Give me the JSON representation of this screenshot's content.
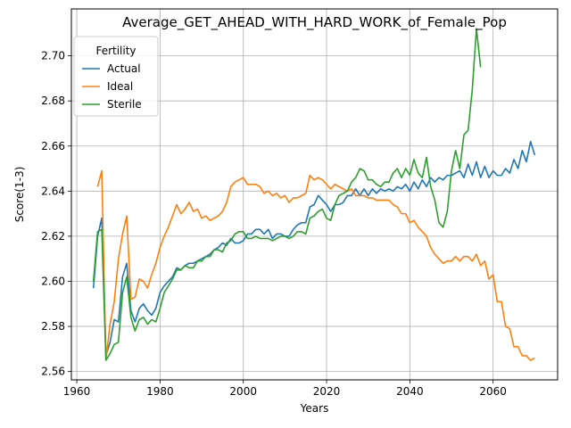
{
  "chart_data": {
    "type": "line",
    "title": "Average_GET_AHEAD_WITH_HARD_WORK_of_Female_Pop",
    "xlabel": "Years",
    "ylabel": "Score(1-3)",
    "xlim": [
      1958.7,
      2075.5
    ],
    "ylim": [
      2.5563,
      2.7208
    ],
    "x_ticks": [
      1960,
      1980,
      2000,
      2020,
      2040,
      2060
    ],
    "y_ticks": [
      2.56,
      2.58,
      2.6,
      2.62,
      2.64,
      2.66,
      2.68,
      2.7
    ],
    "grid": true,
    "legend": {
      "title": "Fertility",
      "placement": "upper-left"
    },
    "series": [
      {
        "name": "Actual",
        "color": "#1f77b4",
        "points": [
          [
            1964,
            2.597
          ],
          [
            1965,
            2.62
          ],
          [
            1966,
            2.628
          ],
          [
            1967,
            2.567
          ],
          [
            1968,
            2.573
          ],
          [
            1969,
            2.583
          ],
          [
            1970,
            2.582
          ],
          [
            1971,
            2.602
          ],
          [
            1972,
            2.608
          ],
          [
            1973,
            2.587
          ],
          [
            1974,
            2.582
          ],
          [
            1975,
            2.588
          ],
          [
            1976,
            2.59
          ],
          [
            1977,
            2.587
          ],
          [
            1978,
            2.585
          ],
          [
            1979,
            2.588
          ],
          [
            1980,
            2.595
          ],
          [
            1981,
            2.598
          ],
          [
            1982,
            2.6
          ],
          [
            1983,
            2.602
          ],
          [
            1984,
            2.606
          ],
          [
            1985,
            2.605
          ],
          [
            1986,
            2.607
          ],
          [
            1987,
            2.608
          ],
          [
            1988,
            2.608
          ],
          [
            1989,
            2.609
          ],
          [
            1990,
            2.61
          ],
          [
            1991,
            2.611
          ],
          [
            1992,
            2.612
          ],
          [
            1993,
            2.614
          ],
          [
            1994,
            2.615
          ],
          [
            1995,
            2.617
          ],
          [
            1996,
            2.616
          ],
          [
            1997,
            2.619
          ],
          [
            1998,
            2.617
          ],
          [
            1999,
            2.617
          ],
          [
            2000,
            2.618
          ],
          [
            2001,
            2.621
          ],
          [
            2002,
            2.621
          ],
          [
            2003,
            2.623
          ],
          [
            2004,
            2.623
          ],
          [
            2005,
            2.621
          ],
          [
            2006,
            2.623
          ],
          [
            2007,
            2.619
          ],
          [
            2008,
            2.621
          ],
          [
            2009,
            2.621
          ],
          [
            2010,
            2.62
          ],
          [
            2011,
            2.62
          ],
          [
            2012,
            2.623
          ],
          [
            2013,
            2.625
          ],
          [
            2014,
            2.626
          ],
          [
            2015,
            2.626
          ],
          [
            2016,
            2.633
          ],
          [
            2017,
            2.634
          ],
          [
            2018,
            2.638
          ],
          [
            2019,
            2.636
          ],
          [
            2020,
            2.634
          ],
          [
            2021,
            2.631
          ],
          [
            2022,
            2.634
          ],
          [
            2023,
            2.634
          ],
          [
            2024,
            2.635
          ],
          [
            2025,
            2.638
          ],
          [
            2026,
            2.638
          ],
          [
            2027,
            2.641
          ],
          [
            2028,
            2.638
          ],
          [
            2029,
            2.641
          ],
          [
            2030,
            2.638
          ],
          [
            2031,
            2.641
          ],
          [
            2032,
            2.639
          ],
          [
            2033,
            2.641
          ],
          [
            2034,
            2.64
          ],
          [
            2035,
            2.641
          ],
          [
            2036,
            2.64
          ],
          [
            2037,
            2.642
          ],
          [
            2038,
            2.641
          ],
          [
            2039,
            2.643
          ],
          [
            2040,
            2.64
          ],
          [
            2041,
            2.644
          ],
          [
            2042,
            2.641
          ],
          [
            2043,
            2.645
          ],
          [
            2044,
            2.642
          ],
          [
            2045,
            2.646
          ],
          [
            2046,
            2.644
          ],
          [
            2047,
            2.646
          ],
          [
            2048,
            2.645
          ],
          [
            2049,
            2.647
          ],
          [
            2050,
            2.647
          ],
          [
            2051,
            2.648
          ],
          [
            2052,
            2.649
          ],
          [
            2053,
            2.646
          ],
          [
            2054,
            2.652
          ],
          [
            2055,
            2.647
          ],
          [
            2056,
            2.653
          ],
          [
            2057,
            2.646
          ],
          [
            2058,
            2.651
          ],
          [
            2059,
            2.646
          ],
          [
            2060,
            2.649
          ],
          [
            2061,
            2.647
          ],
          [
            2062,
            2.647
          ],
          [
            2063,
            2.65
          ],
          [
            2064,
            2.648
          ],
          [
            2065,
            2.654
          ],
          [
            2066,
            2.65
          ],
          [
            2067,
            2.658
          ],
          [
            2068,
            2.653
          ],
          [
            2069,
            2.662
          ],
          [
            2070,
            2.656
          ]
        ]
      },
      {
        "name": "Ideal",
        "color": "#ff7f0e",
        "points": [
          [
            1965,
            2.642
          ],
          [
            1966,
            2.649
          ],
          [
            1967,
            2.565
          ],
          [
            1968,
            2.581
          ],
          [
            1969,
            2.591
          ],
          [
            1970,
            2.61
          ],
          [
            1971,
            2.621
          ],
          [
            1972,
            2.629
          ],
          [
            1973,
            2.592
          ],
          [
            1974,
            2.593
          ],
          [
            1975,
            2.601
          ],
          [
            1976,
            2.6
          ],
          [
            1977,
            2.597
          ],
          [
            1978,
            2.603
          ],
          [
            1979,
            2.608
          ],
          [
            1980,
            2.615
          ],
          [
            1981,
            2.62
          ],
          [
            1982,
            2.624
          ],
          [
            1983,
            2.629
          ],
          [
            1984,
            2.634
          ],
          [
            1985,
            2.63
          ],
          [
            1986,
            2.632
          ],
          [
            1987,
            2.635
          ],
          [
            1988,
            2.631
          ],
          [
            1989,
            2.632
          ],
          [
            1990,
            2.628
          ],
          [
            1991,
            2.629
          ],
          [
            1992,
            2.627
          ],
          [
            1993,
            2.628
          ],
          [
            1994,
            2.629
          ],
          [
            1995,
            2.631
          ],
          [
            1996,
            2.635
          ],
          [
            1997,
            2.642
          ],
          [
            1998,
            2.644
          ],
          [
            1999,
            2.645
          ],
          [
            2000,
            2.646
          ],
          [
            2001,
            2.643
          ],
          [
            2002,
            2.643
          ],
          [
            2003,
            2.643
          ],
          [
            2004,
            2.642
          ],
          [
            2005,
            2.639
          ],
          [
            2006,
            2.64
          ],
          [
            2007,
            2.638
          ],
          [
            2008,
            2.639
          ],
          [
            2009,
            2.637
          ],
          [
            2010,
            2.638
          ],
          [
            2011,
            2.635
          ],
          [
            2012,
            2.637
          ],
          [
            2013,
            2.637
          ],
          [
            2014,
            2.638
          ],
          [
            2015,
            2.639
          ],
          [
            2016,
            2.647
          ],
          [
            2017,
            2.645
          ],
          [
            2018,
            2.646
          ],
          [
            2019,
            2.645
          ],
          [
            2020,
            2.643
          ],
          [
            2021,
            2.641
          ],
          [
            2022,
            2.643
          ],
          [
            2023,
            2.642
          ],
          [
            2024,
            2.641
          ],
          [
            2025,
            2.64
          ],
          [
            2026,
            2.641
          ],
          [
            2027,
            2.638
          ],
          [
            2028,
            2.638
          ],
          [
            2029,
            2.638
          ],
          [
            2030,
            2.637
          ],
          [
            2031,
            2.637
          ],
          [
            2032,
            2.636
          ],
          [
            2033,
            2.636
          ],
          [
            2034,
            2.636
          ],
          [
            2035,
            2.636
          ],
          [
            2036,
            2.634
          ],
          [
            2037,
            2.633
          ],
          [
            2038,
            2.63
          ],
          [
            2039,
            2.63
          ],
          [
            2040,
            2.626
          ],
          [
            2041,
            2.627
          ],
          [
            2042,
            2.624
          ],
          [
            2043,
            2.622
          ],
          [
            2044,
            2.62
          ],
          [
            2045,
            2.615
          ],
          [
            2046,
            2.612
          ],
          [
            2047,
            2.61
          ],
          [
            2048,
            2.608
          ],
          [
            2049,
            2.609
          ],
          [
            2050,
            2.609
          ],
          [
            2051,
            2.611
          ],
          [
            2052,
            2.609
          ],
          [
            2053,
            2.611
          ],
          [
            2054,
            2.611
          ],
          [
            2055,
            2.609
          ],
          [
            2056,
            2.612
          ],
          [
            2057,
            2.607
          ],
          [
            2058,
            2.609
          ],
          [
            2059,
            2.601
          ],
          [
            2060,
            2.603
          ],
          [
            2061,
            2.591
          ],
          [
            2062,
            2.591
          ],
          [
            2063,
            2.58
          ],
          [
            2064,
            2.579
          ],
          [
            2065,
            2.571
          ],
          [
            2066,
            2.571
          ],
          [
            2067,
            2.567
          ],
          [
            2068,
            2.567
          ],
          [
            2069,
            2.565
          ],
          [
            2070,
            2.566
          ]
        ]
      },
      {
        "name": "Sterile",
        "color": "#2ca02c",
        "points": [
          [
            1964,
            2.6
          ],
          [
            1965,
            2.622
          ],
          [
            1966,
            2.623
          ],
          [
            1967,
            2.565
          ],
          [
            1968,
            2.568
          ],
          [
            1969,
            2.572
          ],
          [
            1970,
            2.573
          ],
          [
            1971,
            2.595
          ],
          [
            1972,
            2.602
          ],
          [
            1973,
            2.584
          ],
          [
            1974,
            2.578
          ],
          [
            1975,
            2.583
          ],
          [
            1976,
            2.584
          ],
          [
            1977,
            2.581
          ],
          [
            1978,
            2.583
          ],
          [
            1979,
            2.582
          ],
          [
            1980,
            2.588
          ],
          [
            1981,
            2.595
          ],
          [
            1982,
            2.598
          ],
          [
            1983,
            2.601
          ],
          [
            1984,
            2.605
          ],
          [
            1985,
            2.605
          ],
          [
            1986,
            2.607
          ],
          [
            1987,
            2.606
          ],
          [
            1988,
            2.606
          ],
          [
            1989,
            2.609
          ],
          [
            1990,
            2.609
          ],
          [
            1991,
            2.611
          ],
          [
            1992,
            2.611
          ],
          [
            1993,
            2.614
          ],
          [
            1994,
            2.614
          ],
          [
            1995,
            2.613
          ],
          [
            1996,
            2.617
          ],
          [
            1997,
            2.618
          ],
          [
            1998,
            2.621
          ],
          [
            1999,
            2.622
          ],
          [
            2000,
            2.622
          ],
          [
            2001,
            2.619
          ],
          [
            2002,
            2.619
          ],
          [
            2003,
            2.62
          ],
          [
            2004,
            2.619
          ],
          [
            2005,
            2.619
          ],
          [
            2006,
            2.619
          ],
          [
            2007,
            2.618
          ],
          [
            2008,
            2.619
          ],
          [
            2009,
            2.62
          ],
          [
            2010,
            2.62
          ],
          [
            2011,
            2.619
          ],
          [
            2012,
            2.62
          ],
          [
            2013,
            2.622
          ],
          [
            2014,
            2.622
          ],
          [
            2015,
            2.621
          ],
          [
            2016,
            2.628
          ],
          [
            2017,
            2.629
          ],
          [
            2018,
            2.631
          ],
          [
            2019,
            2.632
          ],
          [
            2020,
            2.628
          ],
          [
            2021,
            2.627
          ],
          [
            2022,
            2.634
          ],
          [
            2023,
            2.638
          ],
          [
            2024,
            2.639
          ],
          [
            2025,
            2.64
          ],
          [
            2026,
            2.644
          ],
          [
            2027,
            2.646
          ],
          [
            2028,
            2.65
          ],
          [
            2029,
            2.649
          ],
          [
            2030,
            2.645
          ],
          [
            2031,
            2.645
          ],
          [
            2032,
            2.643
          ],
          [
            2033,
            2.642
          ],
          [
            2034,
            2.644
          ],
          [
            2035,
            2.644
          ],
          [
            2036,
            2.648
          ],
          [
            2037,
            2.65
          ],
          [
            2038,
            2.646
          ],
          [
            2039,
            2.65
          ],
          [
            2040,
            2.647
          ],
          [
            2041,
            2.654
          ],
          [
            2042,
            2.648
          ],
          [
            2043,
            2.646
          ],
          [
            2044,
            2.655
          ],
          [
            2045,
            2.642
          ],
          [
            2046,
            2.636
          ],
          [
            2047,
            2.626
          ],
          [
            2048,
            2.624
          ],
          [
            2049,
            2.631
          ],
          [
            2050,
            2.649
          ],
          [
            2051,
            2.658
          ],
          [
            2052,
            2.65
          ],
          [
            2053,
            2.665
          ],
          [
            2054,
            2.667
          ],
          [
            2055,
            2.685
          ],
          [
            2056,
            2.712
          ],
          [
            2057,
            2.695
          ]
        ]
      }
    ]
  }
}
